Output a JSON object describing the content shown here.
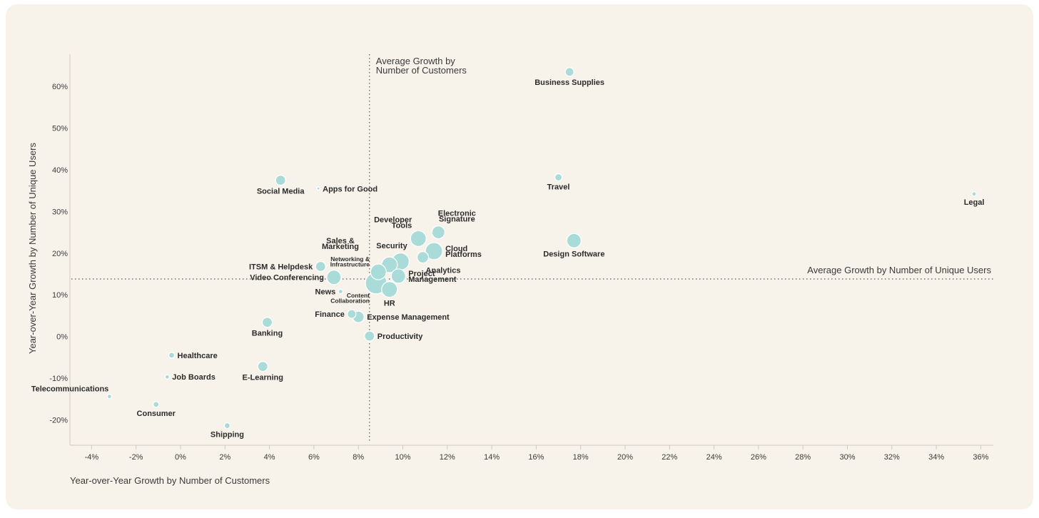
{
  "chart_data": {
    "type": "scatter",
    "xlabel": "Year-over-Year Growth by Number of Customers",
    "ylabel": "Year-over-Year Growth by Number of Unique Users",
    "xlim": [
      -5,
      36.5
    ],
    "ylim": [
      -26,
      68
    ],
    "x_ticks": [
      -4,
      -2,
      0,
      2,
      4,
      6,
      8,
      10,
      12,
      14,
      16,
      18,
      20,
      22,
      24,
      26,
      28,
      30,
      32,
      34,
      36
    ],
    "y_ticks": [
      -20,
      -10,
      0,
      10,
      20,
      30,
      40,
      50,
      60
    ],
    "tick_suffix": "%",
    "reference_lines": {
      "vertical": {
        "x": 8.5,
        "label": [
          "Average Growth by",
          "Number of Customers"
        ]
      },
      "horizontal": {
        "y": 13.8,
        "label": "Average Growth by Number of Unique Users"
      }
    },
    "colors": {
      "bubble": "#a9dcd9",
      "bubble_stroke": "#ffffff",
      "reference_line": "#555555"
    },
    "points": [
      {
        "label": [
          "Business Supplies"
        ],
        "x": 17.5,
        "y": 63.5,
        "size": 6,
        "pos": "below"
      },
      {
        "label": [
          "Social Media"
        ],
        "x": 4.5,
        "y": 37.5,
        "size": 7,
        "pos": "below"
      },
      {
        "label": [
          "Apps for Good"
        ],
        "x": 6.2,
        "y": 35.5,
        "size": 2,
        "pos": "right"
      },
      {
        "label": [
          "Travel"
        ],
        "x": 17,
        "y": 38.2,
        "size": 5,
        "pos": "below"
      },
      {
        "label": [
          "Legal"
        ],
        "x": 35.7,
        "y": 34.2,
        "size": 3,
        "pos": "below"
      },
      {
        "label": [
          "Electronic",
          "Signature"
        ],
        "x": 11.6,
        "y": 25,
        "size": 9,
        "pos": "above-right"
      },
      {
        "label": [
          "Developer",
          "Tools"
        ],
        "x": 10.7,
        "y": 23.5,
        "size": 11,
        "pos": "above-left"
      },
      {
        "label": [
          "Design Software"
        ],
        "x": 17.7,
        "y": 23,
        "size": 10,
        "pos": "below"
      },
      {
        "label": [
          "Cloud",
          "Platforms"
        ],
        "x": 11.4,
        "y": 20.5,
        "size": 12,
        "pos": "right"
      },
      {
        "label": [
          "Sales &",
          "Marketing"
        ],
        "x": 9.9,
        "y": 18,
        "size": 12,
        "pos": "custom-sales"
      },
      {
        "label": [
          "Security"
        ],
        "x": 9.4,
        "y": 17.2,
        "size": 11,
        "pos": "custom-security"
      },
      {
        "label": [
          "Analytics"
        ],
        "x": 10.9,
        "y": 19,
        "size": 8,
        "pos": "below-right"
      },
      {
        "label": [
          "ITSM & Helpdesk"
        ],
        "x": 6.3,
        "y": 16.8,
        "size": 7,
        "pos": "left"
      },
      {
        "label": [
          "Networking &",
          "Infrastructure"
        ],
        "x": 8.9,
        "y": 15.5,
        "size": 11,
        "pos": "custom-networking"
      },
      {
        "label": [
          "Video Conferencing"
        ],
        "x": 6.9,
        "y": 14.2,
        "size": 10,
        "pos": "left"
      },
      {
        "label": [
          "Project",
          "Management"
        ],
        "x": 9.8,
        "y": 14.5,
        "size": 10,
        "pos": "right"
      },
      {
        "label": [
          "Content",
          "Collaboration"
        ],
        "x": 8.8,
        "y": 12.8,
        "size": 15,
        "pos": "custom-content"
      },
      {
        "label": [
          "HR"
        ],
        "x": 9.4,
        "y": 11.3,
        "size": 11,
        "pos": "below"
      },
      {
        "label": [
          "News"
        ],
        "x": 7.2,
        "y": 10.8,
        "size": 3,
        "pos": "left"
      },
      {
        "label": [
          "Finance"
        ],
        "x": 7.7,
        "y": 5.4,
        "size": 6,
        "pos": "left"
      },
      {
        "label": [
          "Expense Management"
        ],
        "x": 8,
        "y": 4.7,
        "size": 8,
        "pos": "right"
      },
      {
        "label": [
          "Banking"
        ],
        "x": 3.9,
        "y": 3.4,
        "size": 7,
        "pos": "below"
      },
      {
        "label": [
          "Productivity"
        ],
        "x": 8.5,
        "y": 0.1,
        "size": 7,
        "pos": "right"
      },
      {
        "label": [
          "Healthcare"
        ],
        "x": -0.4,
        "y": -4.5,
        "size": 4,
        "pos": "right"
      },
      {
        "label": [
          "E-Learning"
        ],
        "x": 3.7,
        "y": -7.2,
        "size": 7,
        "pos": "below"
      },
      {
        "label": [
          "Job Boards"
        ],
        "x": -0.6,
        "y": -9.7,
        "size": 3,
        "pos": "right"
      },
      {
        "label": [
          "Telecommunications"
        ],
        "x": -3.2,
        "y": -14.4,
        "size": 3,
        "pos": "above-left"
      },
      {
        "label": [
          "Consumer"
        ],
        "x": -1.1,
        "y": -16.3,
        "size": 4,
        "pos": "below"
      },
      {
        "label": [
          "Shipping"
        ],
        "x": 2.1,
        "y": -21.4,
        "size": 4,
        "pos": "below"
      }
    ]
  }
}
